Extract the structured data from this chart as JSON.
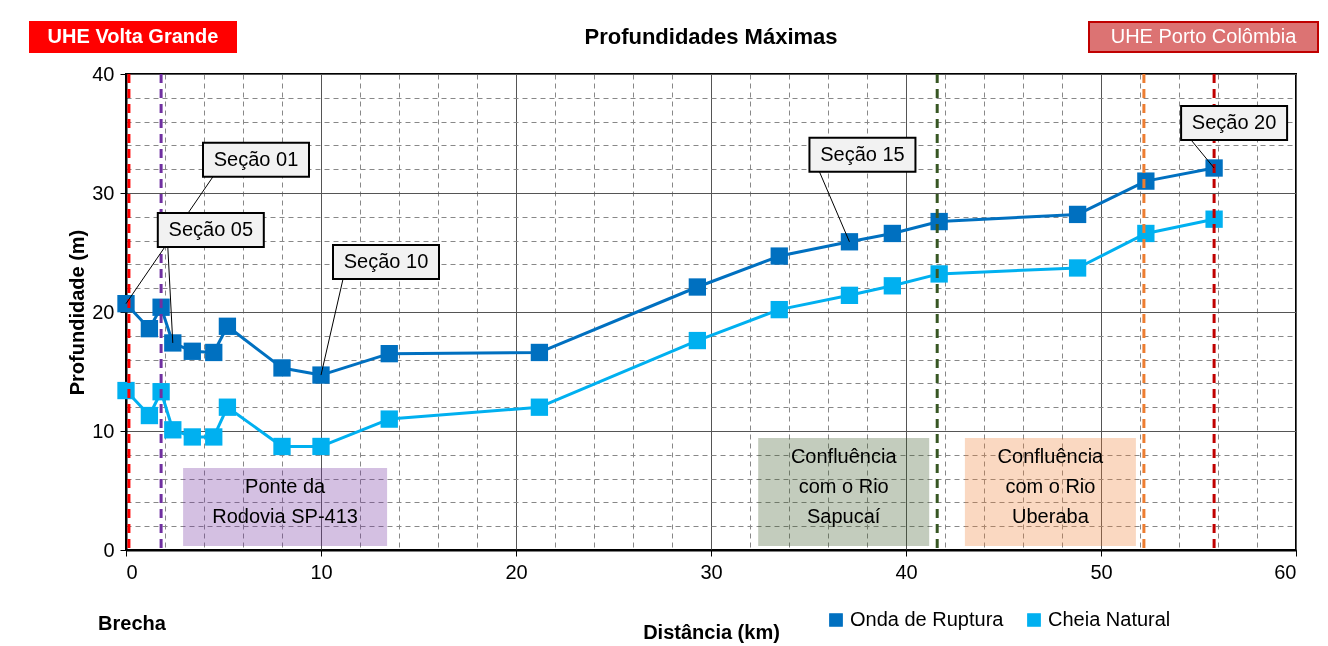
{
  "chart_data": {
    "type": "line",
    "title": "Profundidades Máximas",
    "xlabel": "Distância (km)",
    "ylabel": "Profundidade (m)",
    "xlim": [
      0,
      60
    ],
    "ylim": [
      0,
      40
    ],
    "xticks": [
      0,
      {
        "value": 2,
        "label": null
      },
      {
        "value": 4,
        "label": null
      },
      {
        "value": 6,
        "label": null
      },
      {
        "value": 8,
        "label": null
      },
      10,
      {
        "value": 12,
        "label": null
      },
      {
        "value": 14,
        "label": null
      },
      {
        "value": 16,
        "label": null
      },
      {
        "value": 18,
        "label": null
      },
      20,
      {
        "value": 22,
        "label": null
      },
      {
        "value": 24,
        "label": null
      },
      {
        "value": 26,
        "label": null
      },
      {
        "value": 28,
        "label": null
      },
      30,
      {
        "value": 32,
        "label": null
      },
      {
        "value": 34,
        "label": null
      },
      {
        "value": 36,
        "label": null
      },
      {
        "value": 38,
        "label": null
      },
      40,
      {
        "value": 42,
        "label": null
      },
      {
        "value": 44,
        "label": null
      },
      {
        "value": 46,
        "label": null
      },
      {
        "value": 48,
        "label": null
      },
      50,
      {
        "value": 52,
        "label": null
      },
      {
        "value": 54,
        "label": null
      },
      {
        "value": 56,
        "label": null
      },
      {
        "value": 58,
        "label": null
      },
      60
    ],
    "yticks": [
      0,
      {
        "value": 2,
        "label": null
      },
      {
        "value": 4,
        "label": null
      },
      {
        "value": 6,
        "label": null
      },
      {
        "value": 8,
        "label": null
      },
      10,
      {
        "value": 12,
        "label": null
      },
      {
        "value": 14,
        "label": null
      },
      {
        "value": 16,
        "label": null
      },
      {
        "value": 18,
        "label": null
      },
      20,
      {
        "value": 22,
        "label": null
      },
      {
        "value": 24,
        "label": null
      },
      {
        "value": 26,
        "label": null
      },
      {
        "value": 28,
        "label": null
      },
      30,
      {
        "value": 32,
        "label": null
      },
      {
        "value": 34,
        "label": null
      },
      {
        "value": 36,
        "label": null
      },
      {
        "value": 38,
        "label": null
      },
      40
    ],
    "x": [
      0,
      1.2,
      1.8,
      2.4,
      3.4,
      4.5,
      5.2,
      8.0,
      10.0,
      13.5,
      21.2,
      29.3,
      33.5,
      37.1,
      39.3,
      41.7,
      48.8,
      52.3,
      55.8
    ],
    "series": [
      {
        "name": "Onda de Ruptura",
        "color": "#0070c0",
        "values": [
          20.7,
          18.6,
          20.4,
          17.4,
          16.7,
          16.6,
          18.8,
          15.3,
          14.7,
          16.5,
          16.6,
          22.1,
          24.7,
          25.9,
          26.6,
          27.6,
          28.2,
          31.0,
          32.1
        ]
      },
      {
        "name": "Cheia Natural",
        "color": "#00b0f0",
        "values": [
          13.4,
          11.3,
          13.3,
          10.1,
          9.5,
          9.5,
          12.0,
          8.7,
          8.7,
          11.0,
          12.0,
          17.6,
          20.2,
          21.4,
          22.2,
          23.2,
          23.7,
          26.6,
          27.8
        ]
      }
    ],
    "ref_lines": [
      {
        "axis": "x",
        "value": 0.15,
        "label": "UHE Volta Grande",
        "color": "#ff0000",
        "line_style": "dashed"
      },
      {
        "axis": "x",
        "value": 1.8,
        "label": "Ponte da Rodovia SP-413",
        "color": "#7030a0",
        "line_style": "dashed"
      },
      {
        "axis": "x",
        "value": 41.6,
        "label": "Confluência com o Rio Sapucaí",
        "color": "#375623",
        "line_style": "dashed"
      },
      {
        "axis": "x",
        "value": 52.2,
        "label": "Confluência com o Rio Uberaba",
        "color": "#ed7d31",
        "line_style": "dashed"
      },
      {
        "axis": "x",
        "value": 55.8,
        "label": "UHE Porto Colômbia",
        "color": "#c00000",
        "line_style": "dashed"
      }
    ],
    "annotations": [
      {
        "text": "Seção 01",
        "x": 0,
        "y": 20.7
      },
      {
        "text": "Seção 05",
        "x": 2.4,
        "y": 17.4
      },
      {
        "text": "Seção 10",
        "x": 10.0,
        "y": 14.7
      },
      {
        "text": "Seção 15",
        "x": 37.1,
        "y": 25.9
      },
      {
        "text": "Seção 20",
        "x": 55.8,
        "y": 32.1
      },
      "Brecha"
    ],
    "grid": true,
    "legend": "bottom right",
    "marker": "square",
    "line_style": "solid"
  }
}
